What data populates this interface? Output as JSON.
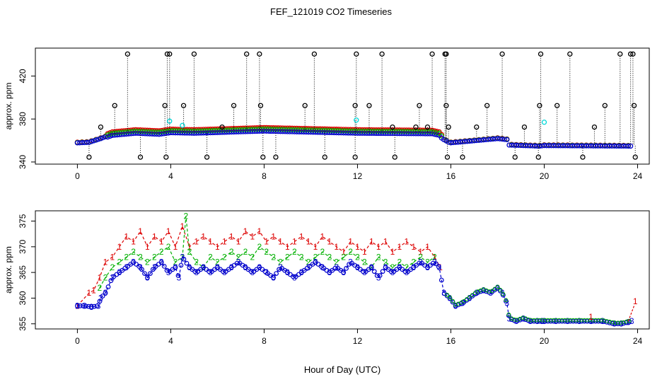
{
  "title": "FEF_121019  CO2 Timeseries",
  "xlabel": "Hour of Day (UTC)",
  "colors": {
    "series1": "#dd0000",
    "series2": "#00b000",
    "series3": "#0000cc",
    "outlier": "#000000",
    "cyan": "#00d8d8"
  },
  "chart_data": [
    {
      "type": "scatter",
      "name": "top-panel",
      "title": "FEF_121019  CO2 Timeseries",
      "xlabel": "",
      "ylabel": "approx. ppm",
      "xlim": [
        -1.8,
        24.5
      ],
      "ylim": [
        338,
        446
      ],
      "xticks": [
        0,
        4,
        8,
        12,
        16,
        20,
        24
      ],
      "yticks": [
        340,
        380,
        420
      ],
      "series_daily_knots": {
        "x": [
          0,
          0.5,
          1.0,
          1.5,
          2.5,
          3.5,
          4.0,
          5.0,
          8.0,
          12.0,
          15.2,
          15.5,
          15.7,
          15.95,
          16.5,
          17.0,
          17.5,
          18.0,
          18.4,
          18.5,
          19.8,
          20.0,
          23.7,
          23.8
        ],
        "values": [
          358,
          358.5,
          362,
          366,
          368,
          367,
          368.5,
          368,
          370,
          368,
          367.5,
          366,
          361,
          358,
          359,
          360,
          361,
          362,
          361,
          356,
          355,
          355.5,
          355,
          356
        ]
      },
      "outliers_high": [
        2.15,
        3.85,
        3.95,
        5.0,
        7.25,
        7.8,
        10.15,
        11.95,
        13.05,
        15.2,
        15.75,
        15.8,
        18.2,
        19.85,
        21.1,
        23.25,
        23.7,
        23.8
      ],
      "outliers_mid": [
        1.6,
        3.75,
        4.55,
        6.7,
        7.85,
        9.75,
        11.9,
        12.5,
        14.65,
        15.8,
        17.55,
        19.8,
        20.55,
        22.6,
        23.85
      ],
      "outliers_low_mid": [
        1.0,
        6.2,
        13.5,
        14.5,
        15.0,
        15.9,
        17.1,
        19.15,
        22.15
      ],
      "outliers_low": [
        0.5,
        2.7,
        3.8,
        5.55,
        7.95,
        8.5,
        10.6,
        11.9,
        13.6,
        15.85,
        16.5,
        18.75,
        19.75,
        21.65,
        23.9
      ],
      "cyan_points": [
        [
          3.95,
          378
        ],
        [
          4.5,
          374
        ],
        [
          11.95,
          379
        ],
        [
          20.0,
          377
        ]
      ]
    },
    {
      "type": "line",
      "name": "bottom-panel",
      "xlabel": "Hour of Day (UTC)",
      "ylabel": "approx. ppm",
      "xlim": [
        -1.8,
        24.5
      ],
      "ylim": [
        354,
        377
      ],
      "xticks": [
        0,
        4,
        8,
        12,
        16,
        20,
        24
      ],
      "yticks": [
        355,
        360,
        365,
        370,
        375
      ],
      "series": [
        {
          "name": "1",
          "x": [
            0,
            0.5,
            0.7,
            0.95,
            1.2,
            1.5,
            1.8,
            2.1,
            2.4,
            2.7,
            3.0,
            3.3,
            3.6,
            3.9,
            4.2,
            4.5,
            4.8,
            5.1,
            5.4,
            5.7,
            6.0,
            6.3,
            6.6,
            6.9,
            7.2,
            7.5,
            7.8,
            8.1,
            8.4,
            8.7,
            9.0,
            9.3,
            9.6,
            9.9,
            10.2,
            10.5,
            10.8,
            11.1,
            11.4,
            11.7,
            12.0,
            12.3,
            12.6,
            12.9,
            13.2,
            13.5,
            13.8,
            14.1,
            14.4,
            14.7,
            15.0,
            15.3,
            15.55
          ],
          "values": [
            358.5,
            361,
            361.5,
            364,
            367,
            368,
            370,
            372,
            371,
            373,
            370,
            372,
            371,
            373,
            370,
            374,
            370,
            371,
            372,
            371,
            370,
            371,
            372,
            371,
            373,
            372,
            373,
            371,
            372,
            371,
            370,
            371,
            372,
            371,
            370,
            372,
            371,
            370,
            369,
            371,
            370,
            369,
            371,
            370,
            371,
            369,
            370,
            371,
            370,
            369,
            370,
            368,
            366
          ]
        },
        {
          "name": "2",
          "x": [
            0.95,
            1.2,
            1.5,
            1.8,
            2.1,
            2.4,
            2.7,
            3.0,
            3.3,
            3.6,
            3.9,
            4.2,
            4.5,
            4.65,
            4.8,
            5.1,
            5.4,
            5.7,
            6.0,
            6.3,
            6.6,
            6.9,
            7.2,
            7.5,
            7.8,
            8.1,
            8.4,
            8.7,
            9.0,
            9.3,
            9.6,
            9.9,
            10.2,
            10.5,
            10.8,
            11.1,
            11.4,
            11.7,
            12.0,
            12.3,
            12.6,
            12.9,
            13.2,
            13.5,
            13.8,
            14.1,
            14.4,
            14.7,
            15.0,
            15.3
          ],
          "values": [
            362,
            364,
            366,
            367,
            368,
            369,
            368,
            367,
            368,
            369,
            370,
            367,
            368,
            376,
            369,
            367,
            366,
            368,
            367,
            368,
            369,
            368,
            369,
            368,
            370,
            369,
            368,
            367,
            368,
            369,
            368,
            367,
            368,
            369,
            368,
            367,
            368,
            369,
            368,
            367,
            366,
            368,
            367,
            366,
            367,
            366,
            367,
            368,
            367,
            368
          ]
        },
        {
          "name": "3",
          "x": [
            0,
            0.3,
            0.6,
            0.9,
            1.0,
            1.2,
            1.5,
            1.8,
            2.1,
            2.4,
            2.7,
            3.0,
            3.3,
            3.6,
            3.9,
            4.2,
            4.35,
            4.5,
            4.8,
            5.1,
            5.4,
            5.7,
            6.0,
            6.3,
            6.6,
            6.9,
            7.2,
            7.5,
            7.8,
            8.1,
            8.4,
            8.7,
            9.0,
            9.3,
            9.6,
            9.9,
            10.2,
            10.5,
            10.8,
            11.1,
            11.4,
            11.7,
            12.0,
            12.3,
            12.6,
            12.9,
            13.2,
            13.5,
            13.8,
            14.1,
            14.4,
            14.7,
            15.0,
            15.3,
            15.5,
            15.7,
            15.95,
            16.2,
            16.5,
            16.8,
            17.1,
            17.4,
            17.7,
            18.0,
            18.2,
            18.4,
            18.5,
            18.8,
            19.1,
            19.4,
            19.7,
            19.9,
            20.0,
            20.5,
            21.0,
            21.5,
            22.0,
            22.5,
            23.0,
            23.3,
            23.6,
            23.75
          ],
          "values": [
            358.5,
            358.5,
            358.3,
            358.5,
            360,
            361,
            364,
            365,
            366,
            367,
            366,
            364,
            366,
            367,
            365,
            366,
            364,
            368,
            366,
            365,
            366,
            365,
            366,
            365,
            366,
            367,
            366,
            365,
            366,
            365,
            364,
            366,
            365,
            364,
            365,
            366,
            367,
            366,
            365,
            366,
            365,
            367,
            366,
            365,
            366,
            364,
            366,
            365,
            366,
            365,
            366,
            367,
            366,
            367,
            366,
            361,
            360,
            358.5,
            359,
            360,
            361,
            361.5,
            361,
            362,
            361,
            359,
            356,
            355.5,
            356,
            355.5,
            355.5,
            355.5,
            355.5,
            355.5,
            355.5,
            355.5,
            355.5,
            355.5,
            355,
            355,
            355.3,
            355.5
          ]
        }
      ]
    }
  ]
}
